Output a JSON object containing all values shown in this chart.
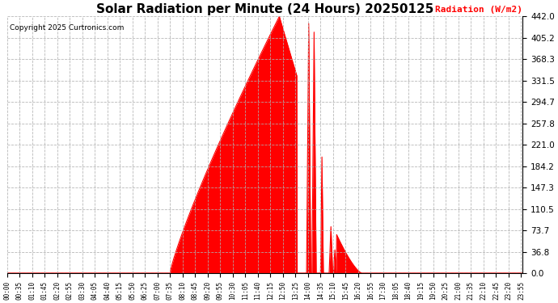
{
  "title": "Solar Radiation per Minute (24 Hours) 20250125",
  "copyright_text": "Copyright 2025 Curtronics.com",
  "ylabel": "Radiation (W/m2)",
  "ylabel_color": "red",
  "background_color": "#ffffff",
  "grid_color": "#aaaaaa",
  "fill_color": "red",
  "line_color": "red",
  "ytick_labels": [
    0.0,
    36.8,
    73.7,
    110.5,
    147.3,
    184.2,
    221.0,
    257.8,
    294.7,
    331.5,
    368.3,
    405.2,
    442.0
  ],
  "ymax": 442.0,
  "ymin": 0.0,
  "total_minutes": 1440,
  "sunrise_minute": 455,
  "sunset_minute": 990,
  "peak_minute": 760,
  "peak_value": 442.0
}
